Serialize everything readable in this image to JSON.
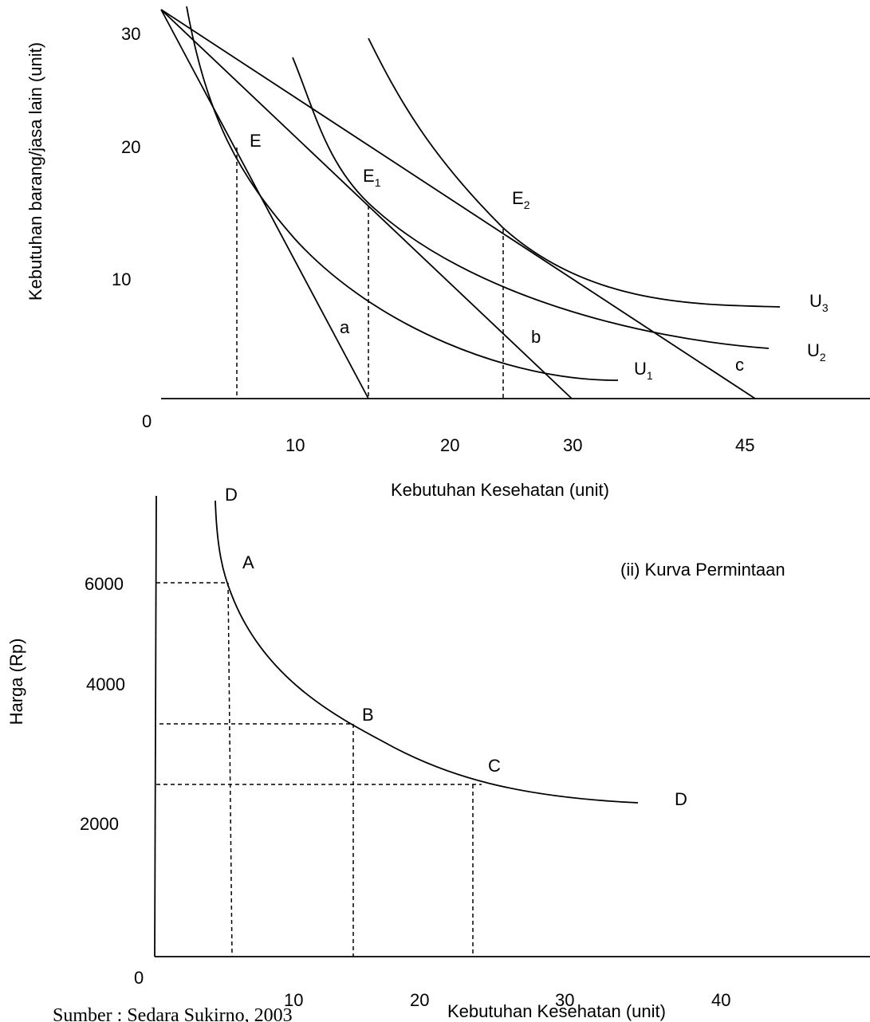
{
  "top": {
    "ylabel": "Kebutuhan barang/jasa lain (unit)",
    "xlabel": "Kebutuhan Kesehatan (unit)",
    "yticks": [
      "30",
      "20",
      "10"
    ],
    "xticks": [
      "10",
      "20",
      "30",
      "45"
    ],
    "origin": "0",
    "points": {
      "E": "E",
      "E1": "E",
      "E1_sub": "1",
      "E2": "E",
      "E2_sub": "2"
    },
    "budget_lines": [
      "a",
      "b",
      "c"
    ],
    "curves": {
      "U1": "U",
      "U1_sub": "1",
      "U2": "U",
      "U2_sub": "2",
      "U3": "U",
      "U3_sub": "3"
    }
  },
  "bottom": {
    "ylabel": "Harga (Rp)",
    "xlabel": "Kebutuhan Kesehatan (unit)",
    "yticks": [
      "6000",
      "4000",
      "2000"
    ],
    "xticks": [
      "10",
      "20",
      "30",
      "40"
    ],
    "origin": "0",
    "title": "(ii) Kurva Permintaan",
    "curve_start": "D",
    "curve_end": "D",
    "points": {
      "A": "A",
      "B": "B",
      "C": "C"
    }
  },
  "source": "Sumber : Sedara Sukirno, 2003"
}
